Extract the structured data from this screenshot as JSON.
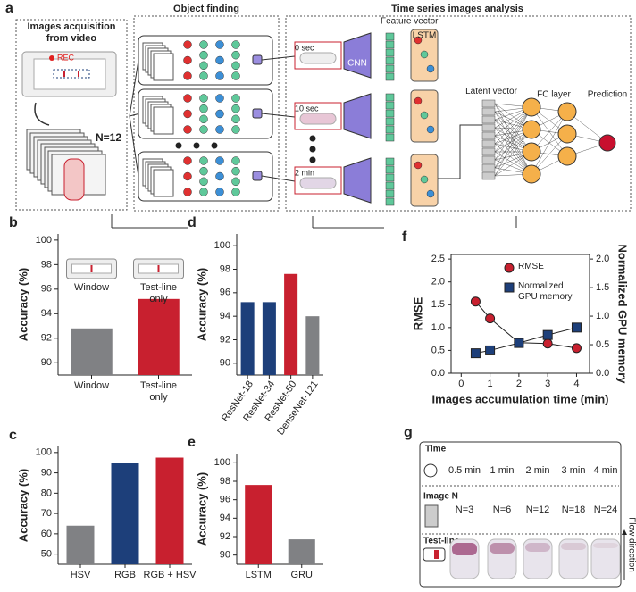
{
  "diagram": {
    "label": "a",
    "acq_title": "Images acquisition from video",
    "rec": "REC",
    "n_label": "N=12",
    "object_title": "Object finding",
    "ts_title": "Time series images analysis",
    "feature": "Feature vector",
    "lstm": "LSTM",
    "frames": [
      "0 sec",
      "10 sec",
      "2 min"
    ],
    "cnn": "CNN",
    "latent": "Latent vector",
    "fc": "FC layer",
    "prediction": "Prediction"
  },
  "chart_data": [
    {
      "label": "b",
      "type": "bar",
      "ylabel": "Accuracy (%)",
      "categories": [
        "Window",
        "Test-line only"
      ],
      "values": [
        92.8,
        95.2
      ],
      "colors": [
        "#808184",
        "#c8202f"
      ],
      "ylim": [
        89,
        100.5
      ],
      "yticks": [
        90,
        92,
        94,
        96,
        98,
        100
      ],
      "annotations": [
        "Window",
        "Test-line only"
      ]
    },
    {
      "label": "c",
      "type": "bar",
      "ylabel": "Accuracy (%)",
      "categories": [
        "HSV",
        "RGB",
        "RGB + HSV"
      ],
      "values": [
        64,
        95,
        97.5
      ],
      "colors": [
        "#808184",
        "#1d3f7a",
        "#c8202f"
      ],
      "ylim": [
        45,
        103
      ],
      "yticks": [
        50,
        60,
        70,
        80,
        90,
        100
      ]
    },
    {
      "label": "d",
      "type": "bar",
      "ylabel": "Accuracy (%)",
      "categories": [
        "ResNet-18",
        "ResNet-34",
        "ResNet-50",
        "DenseNet-121"
      ],
      "values": [
        95.2,
        95.2,
        97.6,
        94
      ],
      "colors": [
        "#1d3f7a",
        "#1d3f7a",
        "#c8202f",
        "#808184"
      ],
      "ylim": [
        89,
        101
      ],
      "yticks": [
        90,
        92,
        94,
        96,
        98,
        100
      ]
    },
    {
      "label": "e",
      "type": "bar",
      "ylabel": "Accuracy (%)",
      "categories": [
        "LSTM",
        "GRU"
      ],
      "values": [
        97.6,
        91.7
      ],
      "colors": [
        "#c8202f",
        "#808184"
      ],
      "ylim": [
        89,
        101
      ],
      "yticks": [
        90,
        92,
        94,
        96,
        98,
        100
      ]
    },
    {
      "label": "f",
      "type": "scatter",
      "xlabel": "Images accumulation time (min)",
      "ylabel": "RMSE",
      "y2label": "Normalized GPU memory",
      "x": [
        0.5,
        1,
        2,
        3,
        4
      ],
      "xlim": [
        -0.35,
        4.45
      ],
      "xticks": [
        0,
        1,
        2,
        3,
        4
      ],
      "ylim": [
        0,
        2.6
      ],
      "yticks": [
        {
          "value": 0,
          "label": "0.0"
        },
        {
          "value": 0.5,
          "label": "0.5"
        },
        {
          "value": 1,
          "label": "1.0"
        },
        {
          "value": 1.5,
          "label": "1.5"
        },
        {
          "value": 2,
          "label": "2.0"
        },
        {
          "value": 2.5,
          "label": "2.5"
        }
      ],
      "y2lim": [
        0,
        2.08
      ],
      "y2ticks": [
        {
          "value": 0,
          "label": "0.0"
        },
        {
          "value": 0.5,
          "label": "0.5"
        },
        {
          "value": 1,
          "label": "1.0"
        },
        {
          "value": 1.5,
          "label": "1.5"
        },
        {
          "value": 2,
          "label": "2.0"
        }
      ],
      "series": [
        {
          "name": "RMSE",
          "color": "#c8202f",
          "marker": "circle",
          "values": [
            1.57,
            1.2,
            0.67,
            0.65,
            0.55
          ]
        },
        {
          "name": "Normalized GPU memory",
          "color": "#1d3f7a",
          "marker": "square",
          "axis": "y2",
          "values": [
            0.35,
            0.4,
            0.53,
            0.67,
            0.8
          ]
        }
      ]
    }
  ],
  "table_g": {
    "label": "g",
    "rows": [
      {
        "head": "Time",
        "cells": [
          "0.5 min",
          "1 min",
          "2 min",
          "3 min",
          "4 min"
        ]
      },
      {
        "head": "Image N",
        "cells": [
          "N=3",
          "N=6",
          "N=12",
          "N=18",
          "N=24"
        ]
      },
      {
        "head": "Test-line"
      }
    ],
    "flow": "Flow direction"
  }
}
